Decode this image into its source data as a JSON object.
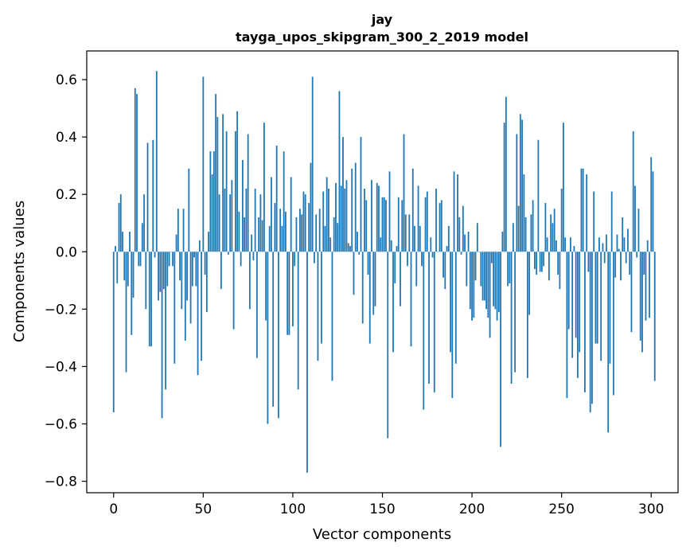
{
  "colors": {
    "bar": "#1f77b4",
    "axis": "#000000",
    "background": "#ffffff"
  },
  "chart_data": {
    "type": "bar",
    "title_lines": [
      "jay",
      "tayga_upos_skipgram_300_2_2019 model"
    ],
    "xlabel": "Vector components",
    "ylabel": "Components values",
    "xlim": [
      -15,
      315
    ],
    "ylim": [
      -0.84,
      0.7
    ],
    "xticks": [
      0,
      50,
      100,
      150,
      200,
      250,
      300
    ],
    "yticks": [
      -0.8,
      -0.6,
      -0.4,
      -0.2,
      0.0,
      0.2,
      0.4,
      0.6
    ],
    "ytick_labels": [
      "−0.8",
      "−0.6",
      "−0.4",
      "−0.2",
      "0.0",
      "0.2",
      "0.4",
      "0.6"
    ],
    "xtick_labels": [
      "0",
      "50",
      "100",
      "150",
      "200",
      "250",
      "300"
    ],
    "grid": false,
    "legend": "none",
    "values": [
      -0.56,
      0.02,
      -0.11,
      0.17,
      0.2,
      0.07,
      -0.1,
      -0.42,
      -0.12,
      0.07,
      -0.29,
      -0.16,
      0.57,
      0.55,
      -0.05,
      -0.05,
      0.1,
      0.2,
      -0.2,
      0.38,
      -0.33,
      -0.33,
      0.39,
      -0.02,
      0.63,
      -0.17,
      -0.14,
      -0.58,
      -0.13,
      -0.48,
      -0.12,
      -0.05,
      0.0,
      -0.05,
      -0.39,
      0.06,
      0.15,
      -0.1,
      -0.2,
      0.15,
      -0.31,
      -0.17,
      0.29,
      -0.25,
      -0.12,
      -0.02,
      -0.12,
      -0.43,
      0.04,
      -0.38,
      0.61,
      -0.08,
      -0.21,
      0.07,
      0.35,
      0.27,
      0.35,
      0.55,
      0.47,
      0.2,
      -0.13,
      0.48,
      0.22,
      0.42,
      -0.01,
      0.2,
      0.25,
      -0.27,
      0.42,
      0.49,
      0.14,
      -0.05,
      0.32,
      0.12,
      0.22,
      0.41,
      -0.2,
      0.06,
      -0.03,
      0.22,
      -0.37,
      0.12,
      0.2,
      0.11,
      0.45,
      -0.24,
      -0.6,
      0.09,
      0.26,
      -0.54,
      0.17,
      0.37,
      -0.58,
      0.15,
      0.09,
      0.35,
      0.14,
      -0.29,
      -0.29,
      0.26,
      -0.26,
      -0.05,
      0.12,
      -0.48,
      0.15,
      0.13,
      0.21,
      0.2,
      -0.77,
      0.17,
      0.31,
      0.61,
      -0.04,
      0.13,
      -0.38,
      0.15,
      -0.32,
      0.21,
      0.09,
      0.26,
      0.22,
      0.05,
      -0.45,
      0.12,
      0.24,
      0.1,
      0.56,
      0.23,
      0.4,
      0.22,
      0.25,
      0.03,
      0.02,
      0.29,
      -0.15,
      0.31,
      0.07,
      -0.01,
      0.4,
      -0.25,
      0.22,
      0.18,
      -0.08,
      -0.32,
      0.25,
      -0.22,
      -0.19,
      0.24,
      0.23,
      0.05,
      0.19,
      0.19,
      0.18,
      -0.65,
      0.28,
      0.04,
      -0.35,
      -0.11,
      0.02,
      0.19,
      -0.19,
      0.18,
      0.41,
      0.13,
      -0.05,
      0.13,
      -0.33,
      0.29,
      0.09,
      -0.12,
      0.23,
      0.09,
      -0.05,
      -0.55,
      0.19,
      0.21,
      -0.46,
      0.05,
      -0.02,
      -0.49,
      0.22,
      0.0,
      0.17,
      0.18,
      -0.09,
      -0.13,
      0.02,
      0.09,
      -0.35,
      -0.51,
      0.28,
      -0.39,
      0.27,
      0.12,
      -0.01,
      0.16,
      0.06,
      -0.12,
      0.07,
      -0.2,
      -0.24,
      -0.23,
      -0.1,
      0.1,
      0.0,
      -0.12,
      -0.17,
      -0.17,
      -0.2,
      -0.23,
      -0.3,
      -0.04,
      -0.19,
      -0.2,
      -0.24,
      -0.21,
      -0.68,
      0.07,
      0.45,
      0.54,
      -0.12,
      -0.11,
      -0.46,
      0.1,
      -0.42,
      0.41,
      0.16,
      0.48,
      0.46,
      0.27,
      0.12,
      -0.44,
      -0.22,
      0.13,
      0.18,
      -0.06,
      -0.08,
      0.39,
      -0.07,
      -0.07,
      -0.05,
      0.17,
      0.05,
      -0.1,
      0.13,
      0.1,
      0.15,
      0.04,
      -0.08,
      -0.13,
      0.22,
      0.45,
      0.05,
      -0.51,
      -0.27,
      0.05,
      -0.37,
      0.02,
      -0.3,
      -0.44,
      -0.35,
      0.29,
      0.29,
      -0.49,
      0.27,
      -0.07,
      -0.56,
      -0.53,
      0.21,
      -0.32,
      -0.32,
      0.05,
      -0.38,
      0.03,
      -0.04,
      0.06,
      -0.63,
      -0.39,
      0.21,
      -0.5,
      -0.09,
      0.06,
      0.01,
      -0.1,
      0.12,
      0.05,
      -0.04,
      0.08,
      -0.08,
      -0.28,
      0.42,
      0.23,
      -0.02,
      0.15,
      -0.31,
      -0.35,
      -0.08,
      -0.24,
      0.04,
      -0.23,
      0.33,
      0.28,
      -0.45
    ]
  }
}
